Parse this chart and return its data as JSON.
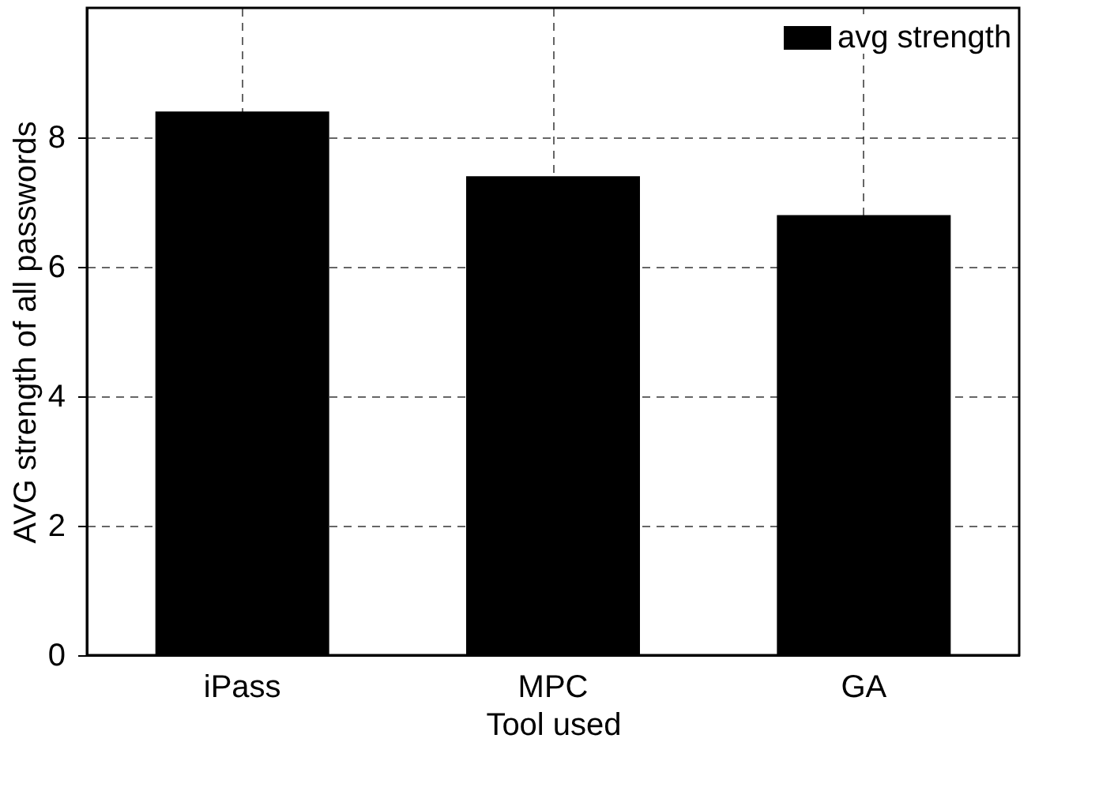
{
  "chart_data": {
    "type": "bar",
    "xlabel": "Tool used",
    "ylabel": "AVG strength of all passwords",
    "categories": [
      "iPass",
      "MPC",
      "GA"
    ],
    "series": [
      {
        "name": "avg strength",
        "color": "#000000",
        "values": [
          8.4,
          7.4,
          6.8
        ]
      }
    ],
    "ylim": [
      0,
      10
    ],
    "yticks": [
      0,
      2,
      4,
      6,
      8
    ],
    "grid": true,
    "legend": "top right"
  }
}
